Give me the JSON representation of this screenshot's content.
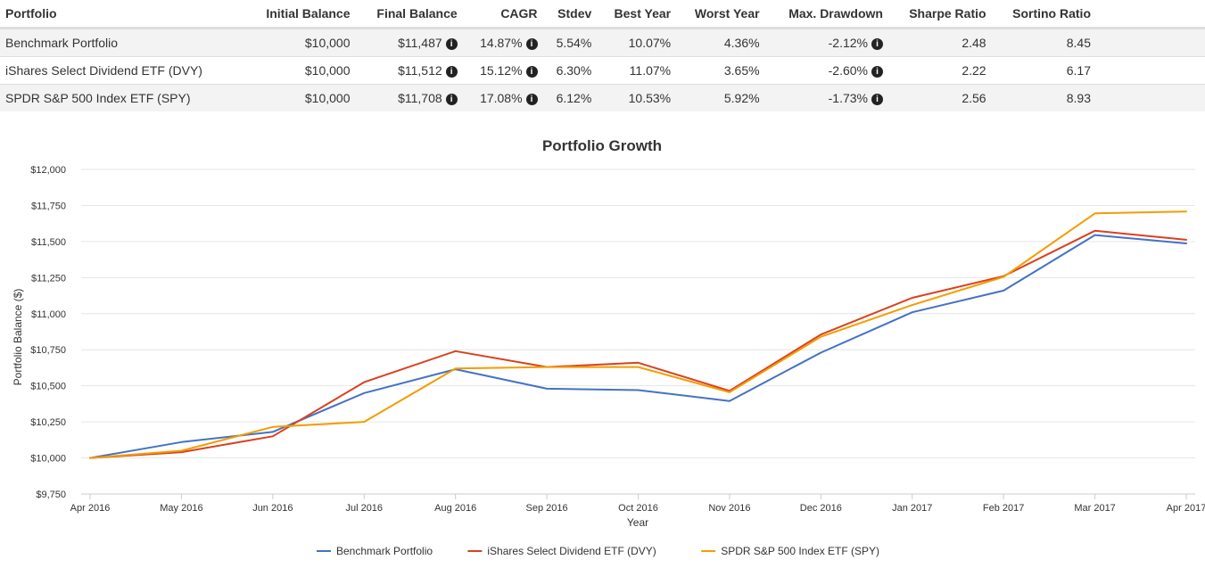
{
  "table": {
    "headers": [
      "Portfolio",
      "Initial Balance",
      "Final Balance",
      "CAGR",
      "Stdev",
      "Best Year",
      "Worst Year",
      "Max. Drawdown",
      "Sharpe Ratio",
      "Sortino Ratio"
    ],
    "rows": [
      {
        "portfolio": "Benchmark Portfolio",
        "initial_balance": "$10,000",
        "final_balance": "$11,487",
        "cagr": "14.87%",
        "stdev": "5.54%",
        "best_year": "10.07%",
        "worst_year": "4.36%",
        "max_drawdown": "-2.12%",
        "sharpe_ratio": "2.48",
        "sortino_ratio": "8.45"
      },
      {
        "portfolio": "iShares Select Dividend ETF (DVY)",
        "initial_balance": "$10,000",
        "final_balance": "$11,512",
        "cagr": "15.12%",
        "stdev": "6.30%",
        "best_year": "11.07%",
        "worst_year": "3.65%",
        "max_drawdown": "-2.60%",
        "sharpe_ratio": "2.22",
        "sortino_ratio": "6.17"
      },
      {
        "portfolio": "SPDR S&P 500 Index ETF (SPY)",
        "initial_balance": "$10,000",
        "final_balance": "$11,708",
        "cagr": "17.08%",
        "stdev": "6.12%",
        "best_year": "10.53%",
        "worst_year": "5.92%",
        "max_drawdown": "-1.73%",
        "sharpe_ratio": "2.56",
        "sortino_ratio": "8.93"
      }
    ],
    "info_icon": "info-circle-icon"
  },
  "chart_data": {
    "type": "line",
    "title": "Portfolio Growth",
    "xlabel": "Year",
    "ylabel": "Portfolio Balance ($)",
    "categories": [
      "Apr 2016",
      "May 2016",
      "Jun 2016",
      "Jul 2016",
      "Aug 2016",
      "Sep 2016",
      "Oct 2016",
      "Nov 2016",
      "Dec 2016",
      "Jan 2017",
      "Feb 2017",
      "Mar 2017",
      "Apr 2017"
    ],
    "yticks": [
      "$9,750",
      "$10,000",
      "$10,250",
      "$10,500",
      "$10,750",
      "$11,000",
      "$11,250",
      "$11,500",
      "$11,750",
      "$12,000"
    ],
    "ylim": [
      9750,
      12000
    ],
    "grid": true,
    "legend_position": "bottom",
    "series": [
      {
        "name": "Benchmark Portfolio",
        "color": "#4472c4",
        "values": [
          10000,
          10110,
          10180,
          10450,
          10615,
          10480,
          10470,
          10395,
          10730,
          11010,
          11160,
          11545,
          11487
        ]
      },
      {
        "name": "iShares Select Dividend ETF (DVY)",
        "color": "#d9411e",
        "values": [
          10000,
          10040,
          10150,
          10525,
          10740,
          10630,
          10660,
          10465,
          10855,
          11110,
          11260,
          11575,
          11512
        ]
      },
      {
        "name": "SPDR S&P 500 Index ETF (SPY)",
        "color": "#f59c00",
        "values": [
          10000,
          10050,
          10215,
          10250,
          10620,
          10630,
          10630,
          10455,
          10840,
          11060,
          11255,
          11695,
          11708
        ]
      }
    ]
  }
}
